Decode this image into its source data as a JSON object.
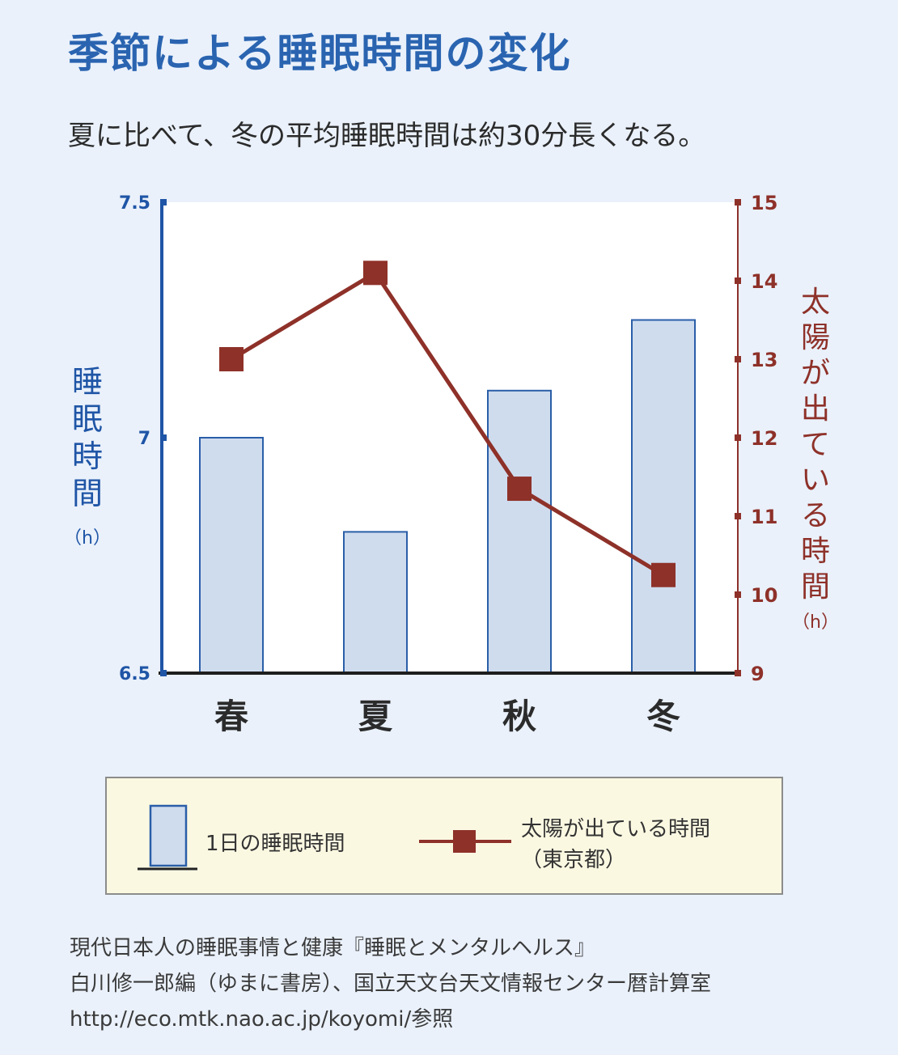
{
  "title": "季節による睡眠時間の変化",
  "subtitle": "夏に比べて、冬の平均睡眠時間は約30分長くなる。",
  "chart_data": {
    "type": "bar",
    "categories": [
      "春",
      "夏",
      "秋",
      "冬"
    ],
    "series": [
      {
        "name": "1日の睡眠時間",
        "type": "bar",
        "axis": "left",
        "values": [
          7.0,
          6.8,
          7.1,
          7.25
        ]
      },
      {
        "name": "太陽が出ている時間",
        "type": "line",
        "axis": "right",
        "values": [
          13.0,
          14.1,
          11.35,
          10.25
        ]
      }
    ],
    "ylabel_left": [
      "睡",
      "眠",
      "時",
      "間"
    ],
    "ylabel_left_unit": "（h）",
    "ylim_left": [
      6.5,
      7.5
    ],
    "yticks_left": [
      "6.5",
      "7",
      "7.5"
    ],
    "ylabel_right": [
      "太",
      "陽",
      "が",
      "出",
      "て",
      "い",
      "る",
      "時",
      "間"
    ],
    "ylabel_right_unit": "（h）",
    "ylim_right": [
      9,
      15
    ],
    "yticks_right": [
      "9",
      "10",
      "11",
      "12",
      "13",
      "14",
      "15"
    ],
    "colors": {
      "bar_fill": "#cfdcee",
      "bar_stroke": "#2a5ea8",
      "left_axis": "#1f55a6",
      "line": "#8e3129",
      "right_axis": "#8e3129"
    },
    "legend": {
      "bar_label": "1日の睡眠時間",
      "line_label": "太陽が出ている時間",
      "line_sublabel": "（東京都）",
      "placement": "bottom"
    }
  },
  "source": {
    "line1": "現代日本人の睡眠事情と健康『睡眠とメンタルヘルス』",
    "line2": "白川修一郎編（ゆまに書房）、国立天文台天文情報センター暦計算室",
    "line3": "http://eco.mtk.nao.ac.jp/koyomi/参照"
  }
}
